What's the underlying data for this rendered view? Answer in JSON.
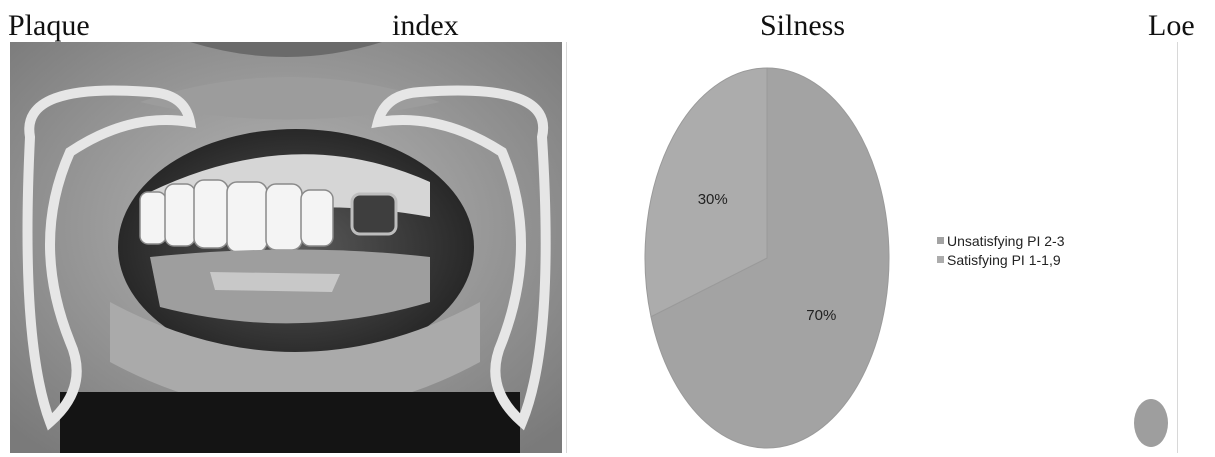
{
  "heading": {
    "words": [
      "Plaque",
      "index",
      "Silness",
      "Loe"
    ]
  },
  "photo": {
    "icon": "intraoral-photo-with-cheek-retractors"
  },
  "chart_data": {
    "type": "pie",
    "slices": [
      {
        "name": "Unsatisfying  PI 2-3",
        "value": 70,
        "label": "70%",
        "color": "#a3a3a3"
      },
      {
        "name": "Satisfying PI 1-1,9",
        "value": 30,
        "label": "30%",
        "color": "#acacac"
      }
    ],
    "legend_position": "right"
  },
  "colors": {
    "pie_stroke": "#9a9a9a",
    "stray_dot": "#9e9e9e"
  }
}
